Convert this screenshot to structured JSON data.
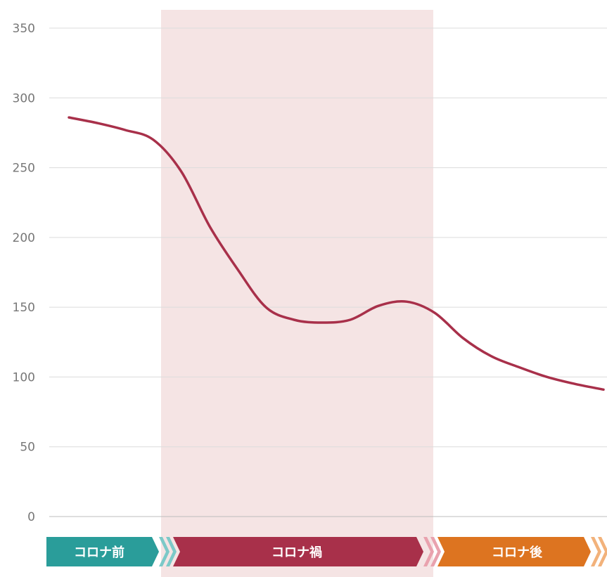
{
  "chart_data": {
    "type": "line",
    "title": "",
    "xlabel": "",
    "ylabel": "",
    "ylim": [
      0,
      350
    ],
    "yticks": [
      0,
      50,
      100,
      150,
      200,
      250,
      300,
      350
    ],
    "grid": true,
    "line_color": "#a8304a",
    "highlight_color": "#f5e4e4",
    "phases": [
      {
        "label": "コロナ前",
        "color": "#2a9d9a",
        "chevron_color": "#7cc9c8"
      },
      {
        "label": "コロナ禍",
        "color": "#a8304a",
        "chevron_color": "#e9a2ae"
      },
      {
        "label": "コロナ後",
        "color": "#dd7420",
        "chevron_color": "#f2b27b"
      }
    ],
    "series": [
      {
        "x": [
          0,
          1,
          2,
          3,
          4,
          5,
          6,
          7,
          8,
          9,
          10,
          11,
          12,
          13,
          14,
          15,
          16,
          17,
          18,
          19
        ],
        "values": [
          286,
          282,
          277,
          270,
          247,
          208,
          177,
          150,
          141,
          139,
          141,
          151,
          154,
          146,
          128,
          115,
          107,
          100,
          95,
          91
        ]
      }
    ]
  }
}
